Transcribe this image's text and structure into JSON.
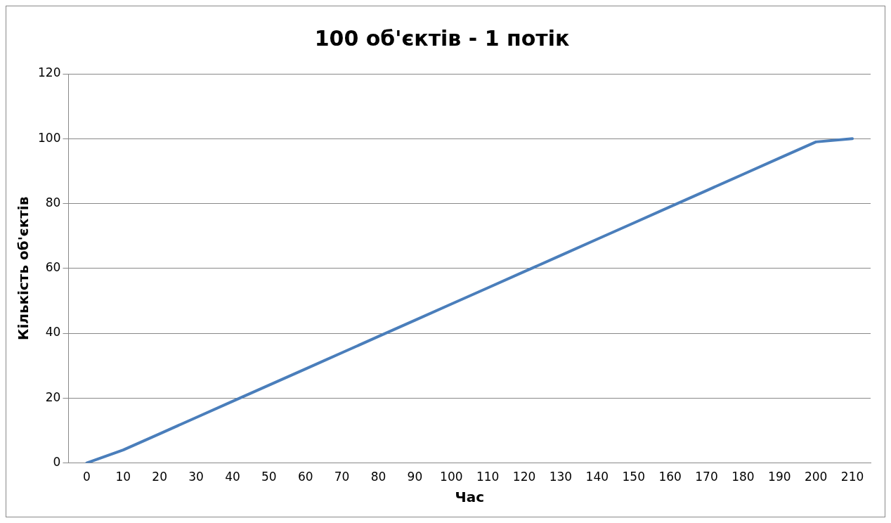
{
  "chart_data": {
    "type": "line",
    "title": "100 об'єктів - 1 потік",
    "xlabel": "Час",
    "ylabel": "Кількість об'єктів",
    "categories": [
      "0",
      "10",
      "20",
      "30",
      "40",
      "50",
      "60",
      "70",
      "80",
      "90",
      "100",
      "110",
      "120",
      "130",
      "140",
      "150",
      "160",
      "170",
      "180",
      "190",
      "200",
      "210"
    ],
    "series": [
      {
        "color": "#4a7ebb",
        "values": [
          0,
          4,
          9,
          14,
          19,
          24,
          29,
          34,
          39,
          44,
          49,
          54,
          59,
          64,
          69,
          74,
          79,
          84,
          89,
          94,
          99,
          100
        ]
      }
    ],
    "ylim": [
      0,
      120
    ],
    "yticks": [
      0,
      20,
      40,
      60,
      80,
      100,
      120
    ],
    "grid": "y",
    "legend": false,
    "marker": "none",
    "line_style": "solid"
  }
}
